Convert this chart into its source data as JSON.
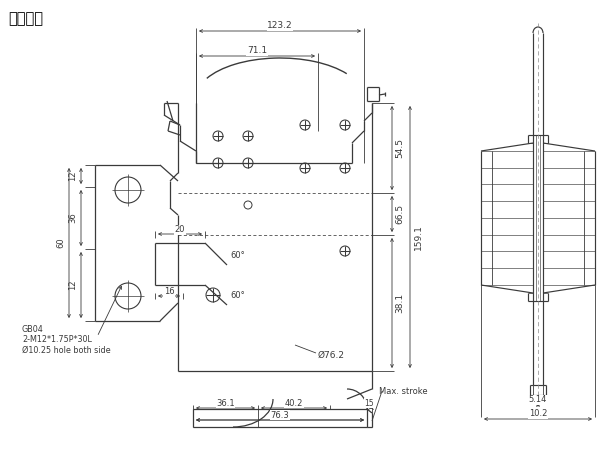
{
  "title": "刀组图面",
  "bg_color": "#ffffff",
  "line_color": "#3a3a3a",
  "dim_color": "#3a3a3a",
  "note_text": "GB04\n2-M12*1.75P*30L\nØ10.25 hole both side",
  "dims": {
    "w123": "123.2",
    "w711": "71.1",
    "h545": "54.5",
    "h665": "66.5",
    "h1591": "159.1",
    "h381": "38.1",
    "d762": "Ø76.2",
    "w361": "36.1",
    "w402": "40.2",
    "w15": "15",
    "w763": "76.3",
    "a60a": "60°",
    "a60b": "60°",
    "n20": "20",
    "n16": "16",
    "n36": "36",
    "n12a": "12",
    "n12b": "12",
    "n60": "60",
    "s514": "5.14",
    "s102": "10.2",
    "max_stroke": "Max. stroke"
  }
}
